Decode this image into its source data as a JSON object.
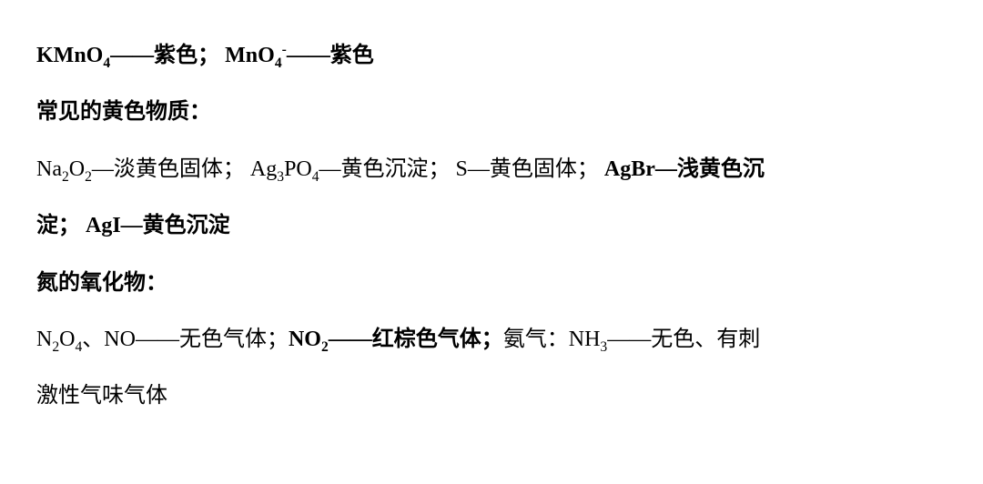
{
  "colors": {
    "text": "#000000",
    "background": "#ffffff"
  },
  "typography": {
    "font_family": "Times New Roman / SimSun serif",
    "base_fontsize_pt": 18,
    "line_height": 2.6,
    "bold_weight": 700,
    "normal_weight": 400,
    "subscript_scale": 0.65
  },
  "lines": [
    {
      "segments": [
        {
          "bold": true,
          "parts": [
            {
              "t": "KMnO"
            },
            {
              "t": "4",
              "sub": true
            },
            {
              "t": "——紫色； MnO"
            },
            {
              "t": "4",
              "sub": true
            },
            {
              "t": "-",
              "sup": true
            },
            {
              "t": "——紫色"
            }
          ]
        }
      ]
    },
    {
      "segments": [
        {
          "bold": true,
          "parts": [
            {
              "t": "常见的黄色物质："
            }
          ]
        }
      ]
    },
    {
      "segments": [
        {
          "bold": false,
          "parts": [
            {
              "t": "Na"
            },
            {
              "t": "2",
              "sub": true
            },
            {
              "t": "O"
            },
            {
              "t": "2",
              "sub": true
            },
            {
              "t": "—淡黄色固体； Ag"
            },
            {
              "t": "3",
              "sub": true
            },
            {
              "t": "PO"
            },
            {
              "t": "4",
              "sub": true
            },
            {
              "t": "—黄色沉淀； S—黄色固体； "
            }
          ]
        },
        {
          "bold": true,
          "parts": [
            {
              "t": "AgBr—浅黄色沉"
            }
          ]
        }
      ]
    },
    {
      "segments": [
        {
          "bold": true,
          "parts": [
            {
              "t": "淀； AgI—黄色沉淀"
            }
          ]
        }
      ]
    },
    {
      "segments": [
        {
          "bold": true,
          "parts": [
            {
              "t": "氮的氧化物："
            }
          ]
        }
      ]
    },
    {
      "segments": [
        {
          "bold": false,
          "parts": [
            {
              "t": "N"
            },
            {
              "t": "2",
              "sub": true
            },
            {
              "t": "O"
            },
            {
              "t": "4",
              "sub": true
            },
            {
              "t": "、NO——无色气体；"
            }
          ]
        },
        {
          "bold": true,
          "parts": [
            {
              "t": "NO"
            },
            {
              "t": "2",
              "sub": true
            },
            {
              "t": "——红棕色气体；"
            }
          ]
        },
        {
          "bold": false,
          "parts": [
            {
              "t": "氨气：NH"
            },
            {
              "t": "3",
              "sub": true
            },
            {
              "t": "——无色、有刺"
            }
          ]
        }
      ]
    },
    {
      "segments": [
        {
          "bold": false,
          "parts": [
            {
              "t": "激性气味气体"
            }
          ]
        }
      ]
    }
  ]
}
